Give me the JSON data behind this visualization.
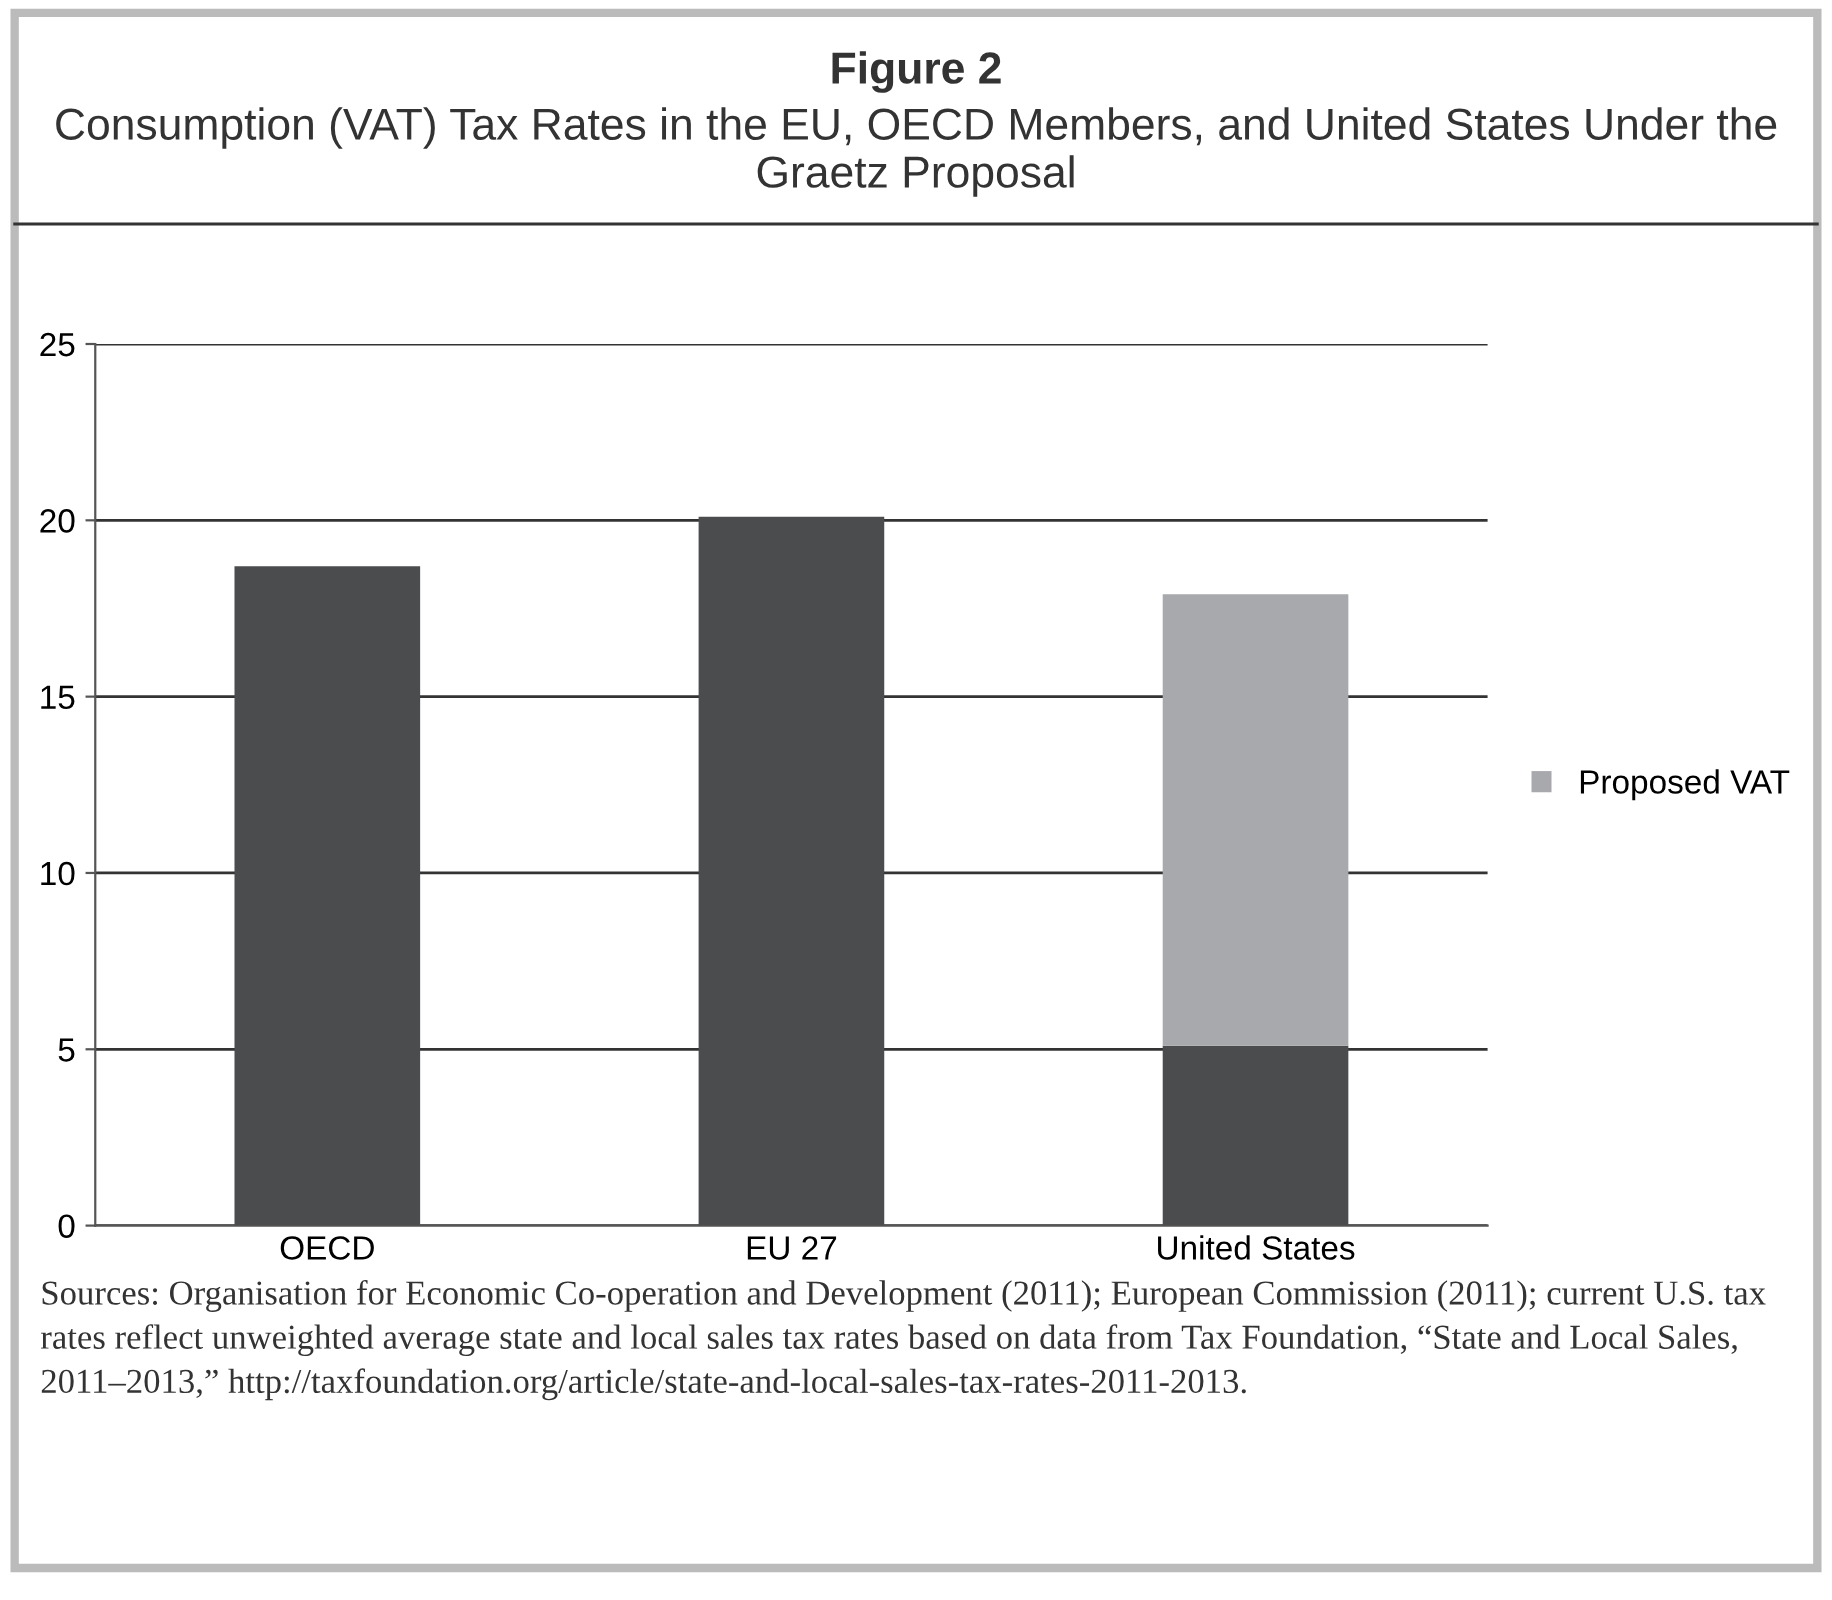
{
  "chart_data": {
    "type": "bar",
    "title": "Figure 2",
    "subtitle": "Consumption (VAT) Tax Rates in the EU, OECD Members, and United States Under the Graetz Proposal",
    "categories": [
      "OECD",
      "EU 27",
      "United States"
    ],
    "series": [
      {
        "color": "#4b4c4e",
        "values": [
          18.7,
          20.1,
          5.1
        ]
      },
      {
        "name": "Proposed VAT",
        "color": "#a8a9ac",
        "values": [
          null,
          null,
          12.8
        ]
      }
    ],
    "stacked": true,
    "ylim": [
      0,
      25
    ],
    "yticks": [
      0,
      5,
      10,
      15,
      20,
      25
    ],
    "grid": "y",
    "legend": "right",
    "annotations": [
      "Sources: Organisation for Economic Co-operation and Development (2011); European Commission (2011); current U.S. tax rates reflect unweighted average state and local sales tax rates based on data from Tax Foundation, “State and Local Sales, 2011–2013,” http://taxfoundation.org/article/state-and-local-sales-tax-rates-2011-2013."
    ]
  }
}
